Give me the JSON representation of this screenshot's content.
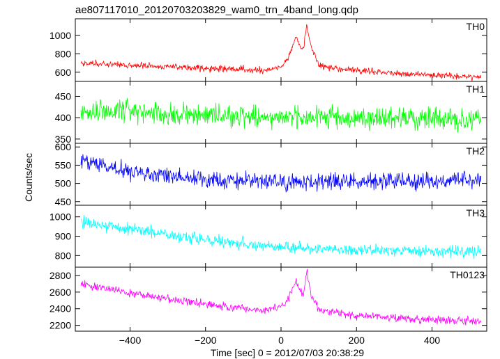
{
  "chart_data": {
    "type": "line",
    "title": "ae807117010_20120703203829_wam0_trn_4band_long.qdp",
    "xlabel": "Time [sec] 0 = 2012/07/03 20:38:29",
    "ylabel": "Counts/sec",
    "xlim": [
      -545,
      545
    ],
    "x_ticks": [
      -400,
      -200,
      0,
      200,
      400
    ],
    "x_tick_labels": [
      "−400",
      "−200",
      "0",
      "200",
      "400"
    ],
    "series": [
      {
        "name": "TH0",
        "color": "#ff0000",
        "ylim": [
          500,
          1180
        ],
        "y_ticks": [
          600,
          800,
          1000
        ],
        "y_tick_labels": [
          "600",
          "800",
          "1000"
        ],
        "noise": 30,
        "x": [
          -530,
          -400,
          -300,
          -200,
          -100,
          -50,
          0,
          20,
          40,
          50,
          60,
          68,
          80,
          90,
          100,
          130,
          200,
          300,
          400,
          530
        ],
        "y": [
          700,
          675,
          660,
          640,
          630,
          625,
          650,
          760,
          990,
          880,
          860,
          1120,
          860,
          800,
          680,
          650,
          620,
          590,
          570,
          550
        ]
      },
      {
        "name": "TH1",
        "color": "#00ff00",
        "ylim": [
          340,
          485
        ],
        "y_ticks": [
          350,
          400,
          450
        ],
        "y_tick_labels": [
          "350",
          "400",
          "450"
        ],
        "noise": 22,
        "x": [
          -530,
          -300,
          0,
          300,
          530
        ],
        "y": [
          418,
          408,
          402,
          398,
          396
        ]
      },
      {
        "name": "TH2",
        "color": "#0000ff",
        "ylim": [
          440,
          610
        ],
        "y_ticks": [
          450,
          500,
          550,
          600
        ],
        "y_tick_labels": [
          "450",
          "500",
          "550",
          "600"
        ],
        "noise": 20,
        "x": [
          -530,
          -450,
          -350,
          -200,
          0,
          200,
          400,
          530
        ],
        "y": [
          562,
          545,
          522,
          512,
          504,
          505,
          507,
          508
        ]
      },
      {
        "name": "TH3",
        "color": "#00ffff",
        "ylim": [
          740,
          1060
        ],
        "y_ticks": [
          800,
          900,
          1000
        ],
        "y_tick_labels": [
          "800",
          "900",
          "1000"
        ],
        "noise": 26,
        "x": [
          -530,
          -400,
          -300,
          -200,
          -100,
          0,
          100,
          200,
          300,
          400,
          530
        ],
        "y": [
          975,
          935,
          905,
          880,
          860,
          845,
          835,
          830,
          826,
          822,
          820
        ]
      },
      {
        "name": "TH0123",
        "color": "#ff00ff",
        "ylim": [
          2130,
          2900
        ],
        "y_ticks": [
          2200,
          2400,
          2600,
          2800
        ],
        "y_tick_labels": [
          "2200",
          "2400",
          "2600",
          "2800"
        ],
        "noise": 40,
        "x": [
          -530,
          -400,
          -300,
          -200,
          -100,
          -50,
          0,
          20,
          40,
          50,
          60,
          68,
          80,
          90,
          100,
          130,
          200,
          300,
          400,
          530
        ],
        "y": [
          2700,
          2590,
          2520,
          2460,
          2400,
          2380,
          2420,
          2520,
          2760,
          2620,
          2560,
          2880,
          2560,
          2480,
          2400,
          2360,
          2320,
          2290,
          2270,
          2250
        ]
      }
    ]
  }
}
